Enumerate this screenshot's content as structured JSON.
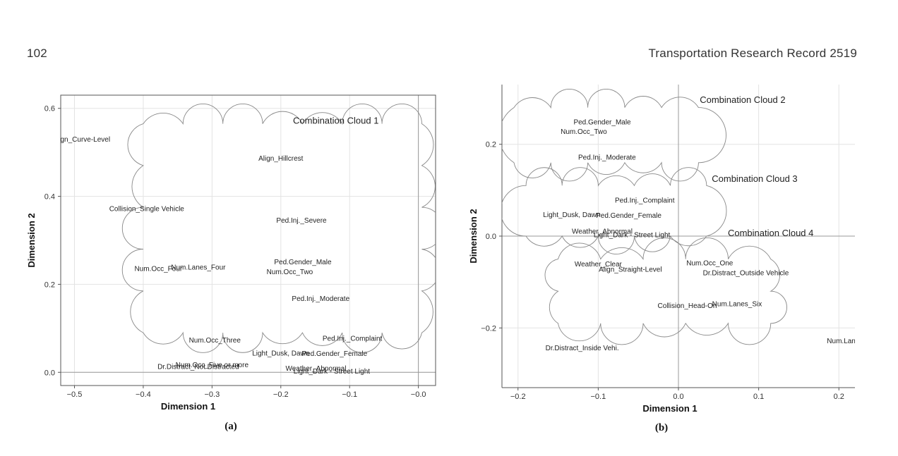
{
  "header": {
    "page_number": "102",
    "journal": "Transportation Research Record 2519"
  },
  "chart_data": [
    {
      "type": "scatter",
      "caption": "(a)",
      "xlabel": "Dimension 1",
      "ylabel": "Dimension 2",
      "xlim": [
        -0.52,
        0.025
      ],
      "ylim": [
        -0.03,
        0.63
      ],
      "xticks": [
        -0.5,
        -0.4,
        -0.3,
        -0.2,
        -0.1,
        0.0
      ],
      "xtick_labels": [
        "−0.5",
        "−0.4",
        "−0.3",
        "−0.2",
        "−0.1",
        "−0.0"
      ],
      "yticks": [
        0.0,
        0.2,
        0.4,
        0.6
      ],
      "ytick_labels": [
        "0.0",
        "0.2",
        "0.4",
        "0.6"
      ],
      "grid": true,
      "reference_lines": {
        "x": 0.0,
        "y": 0.0
      },
      "points": [
        {
          "label": "Align_Curve-Level",
          "x": -0.49,
          "y": 0.53
        },
        {
          "label": "Align_Hillcrest",
          "x": -0.2,
          "y": 0.487
        },
        {
          "label": "Collision_Single Vehicle",
          "x": -0.395,
          "y": 0.372
        },
        {
          "label": "Ped.Inj._Severe",
          "x": -0.17,
          "y": 0.346
        },
        {
          "label": "Ped.Gender_Male",
          "x": -0.168,
          "y": 0.251
        },
        {
          "label": "Num.Occ_Two",
          "x": -0.187,
          "y": 0.229
        },
        {
          "label": "Num.Occ_Four",
          "x": -0.378,
          "y": 0.236
        },
        {
          "label": "Num.Lanes_Four",
          "x": -0.32,
          "y": 0.239
        },
        {
          "label": "Ped.Inj._Moderate",
          "x": -0.142,
          "y": 0.168
        },
        {
          "label": "Ped.Inj._Complaint",
          "x": -0.096,
          "y": 0.077
        },
        {
          "label": "Num.Occ_Three",
          "x": -0.296,
          "y": 0.073
        },
        {
          "label": "Light_Dusk, Dawn",
          "x": -0.2,
          "y": 0.044
        },
        {
          "label": "Ped.Gender_Female",
          "x": -0.122,
          "y": 0.043
        },
        {
          "label": "Num.Occ_Five or more",
          "x": -0.3,
          "y": 0.017
        },
        {
          "label": "Dr.Distract_Not Distracted",
          "x": -0.32,
          "y": 0.013
        },
        {
          "label": "Weather_Abnormal",
          "x": -0.149,
          "y": 0.009
        },
        {
          "label": "Light_Dark - Street Light",
          "x": -0.126,
          "y": 0.003
        }
      ],
      "clouds": [
        {
          "label": "Combination Cloud 1",
          "x_range": [
            -0.4,
            0.005
          ],
          "y_range": [
            0.09,
            0.565
          ]
        }
      ]
    },
    {
      "type": "scatter",
      "caption": "(b)",
      "xlabel": "Dimension 1",
      "ylabel": "Dimension 2",
      "xlim": [
        -0.22,
        0.22
      ],
      "ylim": [
        -0.33,
        0.33
      ],
      "xticks": [
        -0.2,
        -0.1,
        0.0,
        0.1,
        0.2
      ],
      "xtick_labels": [
        "−0.2",
        "−0.1",
        "0.0",
        "0.1",
        "0.2"
      ],
      "yticks": [
        -0.2,
        0.0,
        0.2
      ],
      "ytick_labels": [
        "−0.2",
        "0.0",
        "0.2"
      ],
      "grid": true,
      "reference_lines": {
        "x": 0.0,
        "y": 0.0
      },
      "points": [
        {
          "label": "Ped.Gender_Male",
          "x": -0.095,
          "y": 0.249
        },
        {
          "label": "Num.Occ_Two",
          "x": -0.118,
          "y": 0.228
        },
        {
          "label": "Ped.Inj._Moderate",
          "x": -0.089,
          "y": 0.172
        },
        {
          "label": "Ped.Inj._Complaint",
          "x": -0.042,
          "y": 0.078
        },
        {
          "label": "Light_Dusk, Dawn",
          "x": -0.133,
          "y": 0.047
        },
        {
          "label": "Ped.Gender_Female",
          "x": -0.062,
          "y": 0.045
        },
        {
          "label": "Weather_Abnormal",
          "x": -0.095,
          "y": 0.011
        },
        {
          "label": "Light_Dark - Street Light",
          "x": -0.058,
          "y": 0.003
        },
        {
          "label": "Weather_Clear",
          "x": -0.1,
          "y": -0.061
        },
        {
          "label": "Num.Occ_One",
          "x": 0.039,
          "y": -0.058
        },
        {
          "label": "Align_Straight-Level",
          "x": -0.06,
          "y": -0.072
        },
        {
          "label": "Dr.Distract_Outside Vehicle",
          "x": 0.084,
          "y": -0.08
        },
        {
          "label": "Num.Lanes_Six",
          "x": 0.073,
          "y": -0.147
        },
        {
          "label": "Collision_Head-On",
          "x": 0.011,
          "y": -0.151
        },
        {
          "label": "Dr.Distract_Inside Vehi.",
          "x": -0.12,
          "y": -0.243
        },
        {
          "label": "Num.Lanes_",
          "x": 0.21,
          "y": -0.228
        }
      ],
      "clouds": [
        {
          "label": "Combination Cloud 2",
          "x_range": [
            -0.205,
            0.025
          ],
          "y_range": [
            0.16,
            0.28
          ]
        },
        {
          "label": "Combination Cloud 3",
          "x_range": [
            -0.19,
            0.035
          ],
          "y_range": [
            0.0,
            0.11
          ]
        },
        {
          "label": "Combination Cloud 4",
          "x_range": [
            -0.15,
            0.115
          ],
          "y_range": [
            -0.19,
            -0.05
          ]
        }
      ]
    }
  ]
}
